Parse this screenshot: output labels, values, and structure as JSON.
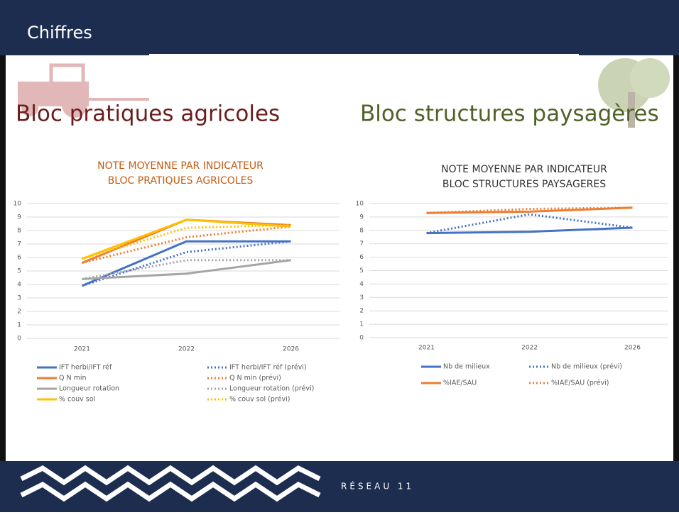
{
  "header": {
    "title": "Chiffres"
  },
  "sections": [
    {
      "heading": "Bloc pratiques agricoles"
    },
    {
      "heading": "Bloc structures paysagères"
    }
  ],
  "footer": {
    "logo": "RÉSEAU 11"
  },
  "chart_data": [
    {
      "type": "line",
      "title": [
        "NOTE MOYENNE PAR INDICATEUR",
        "BLOC PRATIQUES AGRICOLES"
      ],
      "title_color": "#c55a11",
      "categories": [
        "2021",
        "2022",
        "2026"
      ],
      "ylim": [
        0,
        10
      ],
      "yticks": [
        0,
        1,
        2,
        3,
        4,
        5,
        6,
        7,
        8,
        9,
        10
      ],
      "grid": true,
      "legend": "bottom",
      "legend_columns": 2,
      "series": [
        {
          "name": "IFT herbi/IFT réf",
          "color": "#4472c4",
          "style": "solid",
          "values": [
            3.9,
            7.2,
            7.2
          ]
        },
        {
          "name": "IFT herbi/IFT réf (prévi)",
          "color": "#4472c4",
          "style": "dotted",
          "values": [
            3.9,
            6.4,
            7.2
          ]
        },
        {
          "name": "Q N min",
          "color": "#ed7d31",
          "style": "solid",
          "values": [
            5.6,
            8.8,
            8.4
          ]
        },
        {
          "name": "Q N min (prévi)",
          "color": "#ed7d31",
          "style": "dotted",
          "values": [
            5.6,
            7.5,
            8.3
          ]
        },
        {
          "name": "Longueur rotation",
          "color": "#a5a5a5",
          "style": "solid",
          "values": [
            4.4,
            4.8,
            5.8
          ]
        },
        {
          "name": "Longueur rotation (prévi)",
          "color": "#a5a5a5",
          "style": "dotted",
          "values": [
            4.4,
            5.8,
            5.8
          ]
        },
        {
          "name": "% couv sol",
          "color": "#ffc000",
          "style": "solid",
          "values": [
            5.9,
            8.8,
            8.3
          ]
        },
        {
          "name": "% couv sol (prévi)",
          "color": "#ffc000",
          "style": "dotted",
          "values": [
            5.9,
            8.2,
            8.4
          ]
        }
      ]
    },
    {
      "type": "line",
      "title": [
        "NOTE MOYENNE PAR INDICATEUR",
        "BLOC STRUCTURES PAYSAGERES"
      ],
      "title_color": "#333333",
      "categories": [
        "2021",
        "2022",
        "2026"
      ],
      "ylim": [
        0,
        10
      ],
      "yticks": [
        0,
        1,
        2,
        3,
        4,
        5,
        6,
        7,
        8,
        9,
        10
      ],
      "grid": true,
      "legend": "bottom",
      "legend_columns": 2,
      "series": [
        {
          "name": "Nb de milieux",
          "color": "#4472c4",
          "style": "solid",
          "values": [
            7.8,
            7.9,
            8.2
          ]
        },
        {
          "name": "Nb de milieux (prévi)",
          "color": "#4472c4",
          "style": "dotted",
          "values": [
            7.8,
            9.2,
            8.2
          ]
        },
        {
          "name": "%IAE/SAU",
          "color": "#ed7d31",
          "style": "solid",
          "values": [
            9.3,
            9.4,
            9.7
          ]
        },
        {
          "name": "%IAE/SAU (prévi)",
          "color": "#ed7d31",
          "style": "dotted",
          "values": [
            9.3,
            9.6,
            9.7
          ]
        }
      ]
    }
  ]
}
